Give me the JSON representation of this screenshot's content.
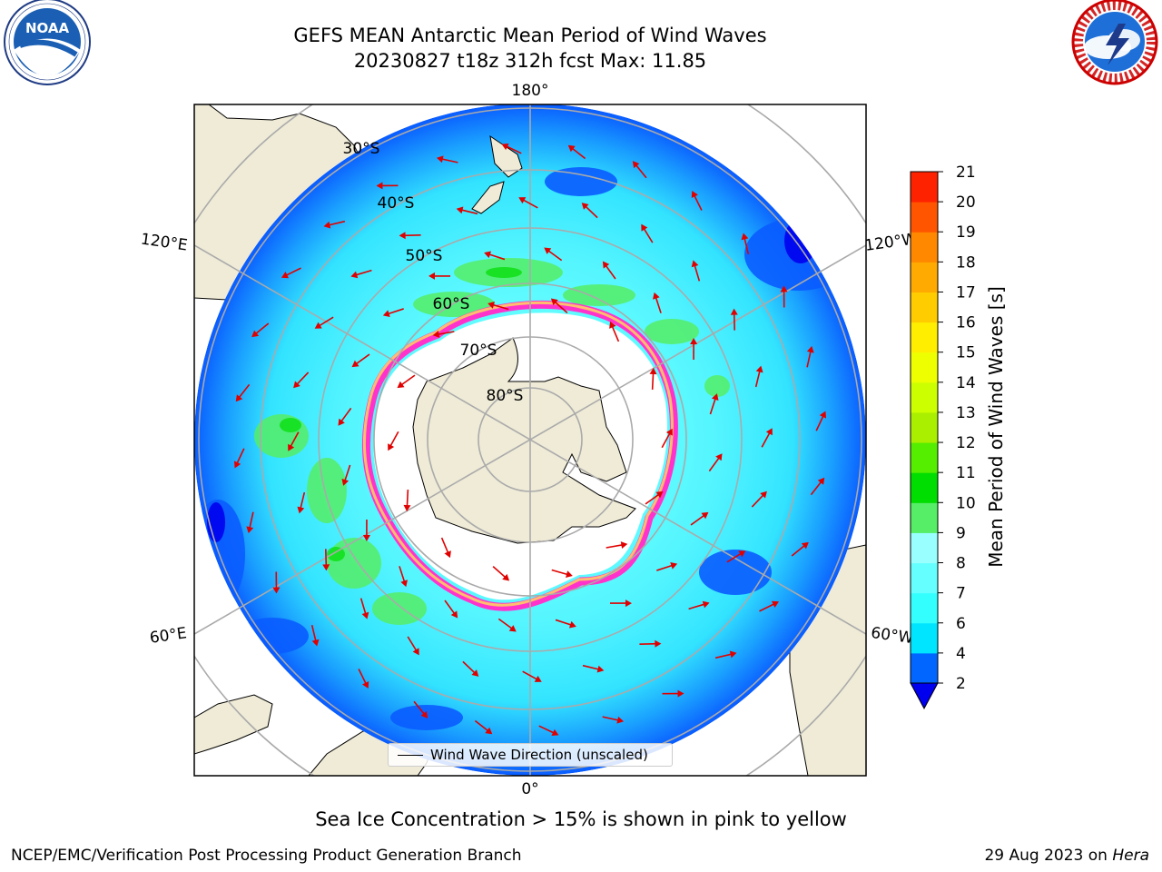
{
  "header": {
    "title_line1": "GEFS MEAN Antarctic Mean Period of Wind Waves",
    "title_line2": "20230827 t18z 312h fcst   Max: 11.85"
  },
  "map": {
    "projection": "south-polar-stereographic",
    "longitude_labels": {
      "top": "180°",
      "bottom": "0°",
      "left_upper": "120°E",
      "left_lower": "60°E",
      "right_upper": "120°W",
      "right_lower": "60°W"
    },
    "latitude_labels": [
      "30°S",
      "40°S",
      "50°S",
      "60°S",
      "70°S",
      "80°S"
    ],
    "legend_label": "Wind Wave Direction (unscaled)",
    "arrow_color": "#e00000",
    "land_color": "#efebd7",
    "ocean_colors": {
      "dark_blue": "#0a5cff",
      "cyan": "#33e4ff",
      "light_cyan": "#66ffff",
      "green": "#55ee66",
      "sea_ice_pink": "#ff33cc",
      "sea_ice_yellow": "#ffcc66"
    }
  },
  "colorbar": {
    "label": "Mean Period of Wind Waves [s]",
    "ticks": [
      "2",
      "4",
      "6",
      "7",
      "8",
      "9",
      "10",
      "11",
      "12",
      "13",
      "14",
      "15",
      "16",
      "17",
      "18",
      "19",
      "20",
      "21"
    ],
    "colors": [
      "#0066ff",
      "#00e5ff",
      "#33ffff",
      "#66ffff",
      "#99ffff",
      "#55ee66",
      "#00dd00",
      "#55ee00",
      "#aaee00",
      "#ccff00",
      "#eeff00",
      "#ffee00",
      "#ffcc00",
      "#ffaa00",
      "#ff8800",
      "#ff5500",
      "#ff2200",
      "#ff0000"
    ],
    "extend_color": "#0000ee"
  },
  "footer": {
    "note": "Sea Ice Concentration > 15% is shown in pink to yellow",
    "credit_left": "NCEP/EMC/Verification Post Processing Product Generation Branch",
    "credit_date": "29 Aug 2023 on ",
    "credit_machine": "Hera"
  },
  "logos": {
    "left": {
      "name": "NOAA",
      "ring_text": "NATIONAL OCEANIC AND ATMOSPHERIC ADMINISTRATION · U.S. DEPARTMENT OF COMMERCE"
    },
    "right": {
      "name": "NATIONAL WEATHER SERVICE"
    }
  }
}
